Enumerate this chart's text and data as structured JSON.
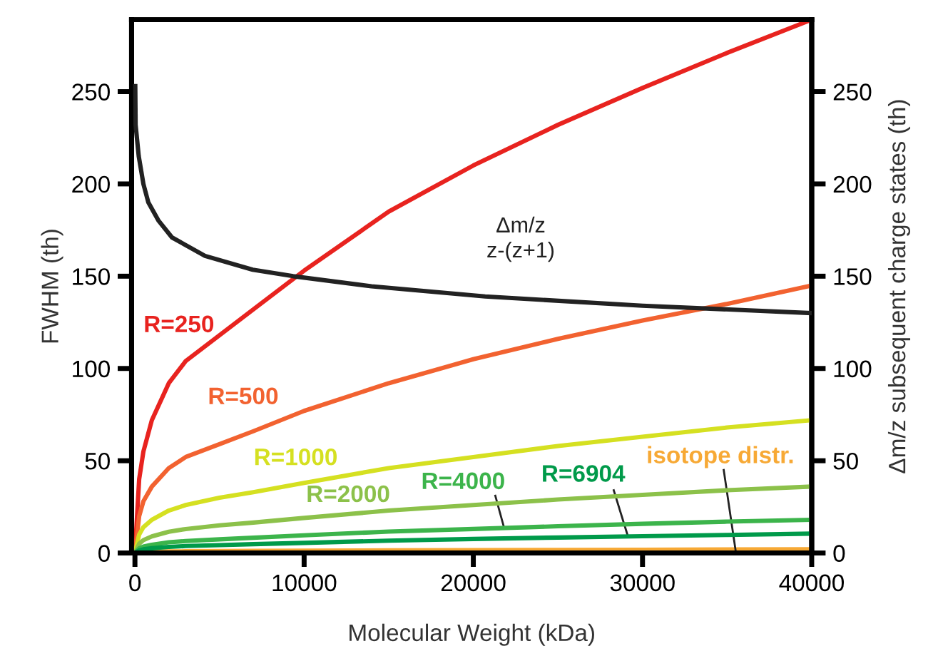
{
  "chart_data": {
    "type": "line",
    "xlabel": "Molecular Weight (kDa)",
    "ylabel": "FWHM (th)",
    "y2label": "Δm/z subsequent charge states (th)",
    "x": [
      0,
      250,
      500,
      1000,
      2000,
      3000,
      5000,
      7000,
      10000,
      15000,
      20000,
      25000,
      30000,
      35000,
      40000
    ],
    "xlim": [
      -200,
      40000
    ],
    "xticks": [
      0,
      10000,
      20000,
      30000,
      40000
    ],
    "ylim": [
      0,
      289
    ],
    "yticks": [
      0,
      50,
      100,
      150,
      200,
      250
    ],
    "y2lim": [
      0,
      289
    ],
    "y2ticks": [
      0,
      50,
      100,
      150,
      200,
      250
    ],
    "grid": false,
    "line_style": "solid",
    "marker": "none",
    "series": [
      {
        "name": "R=250",
        "color": "#e8231f",
        "values": [
          0,
          40,
          55,
          72,
          92,
          104,
          118,
          132,
          153,
          185,
          210,
          232,
          252,
          271,
          289
        ]
      },
      {
        "name": "R=500",
        "color": "#f26230",
        "values": [
          0,
          20,
          28,
          36,
          46,
          52,
          59,
          66,
          77,
          92,
          105,
          116,
          126,
          135,
          145
        ]
      },
      {
        "name": "R=1000",
        "color": "#d5e021",
        "values": [
          0,
          10,
          14,
          18,
          23,
          26,
          30,
          33,
          38,
          46,
          52,
          58,
          63,
          68,
          72
        ]
      },
      {
        "name": "R=2000",
        "color": "#8cc14a",
        "values": [
          0,
          5,
          7,
          9,
          11.5,
          13,
          15,
          16.5,
          19,
          23,
          26,
          29,
          31.5,
          34,
          36
        ]
      },
      {
        "name": "R=4000",
        "color": "#3cb44b",
        "values": [
          0,
          2.5,
          3.5,
          4.5,
          5.8,
          6.5,
          7.4,
          8.3,
          9.6,
          11.6,
          13,
          14.5,
          15.8,
          17,
          18
        ]
      },
      {
        "name": "R=6904",
        "color": "#009a4a",
        "values": [
          0,
          1.4,
          2,
          2.6,
          3.3,
          3.8,
          4.3,
          4.8,
          5.5,
          6.7,
          7.6,
          8.4,
          9.1,
          9.8,
          10.5
        ]
      },
      {
        "name": "isotope distr.",
        "color": "#f7a935",
        "values": [
          null,
          null,
          0.1,
          0.2,
          0.3,
          0.4,
          0.5,
          0.6,
          0.7,
          0.9,
          1,
          1.1,
          1.2,
          1.4,
          1.5
        ]
      },
      {
        "name": "Δm/z\nz-(z+1)",
        "color": "#222222",
        "axis": "y2",
        "x": [
          20,
          40,
          225,
          500,
          790,
          1400,
          2190,
          4140,
          6960,
          9350,
          13980,
          20700,
          30000,
          40000
        ],
        "values": [
          253,
          232,
          215,
          200,
          190,
          180,
          171,
          161,
          153.5,
          150,
          144.5,
          139,
          134,
          130
        ]
      }
    ]
  }
}
